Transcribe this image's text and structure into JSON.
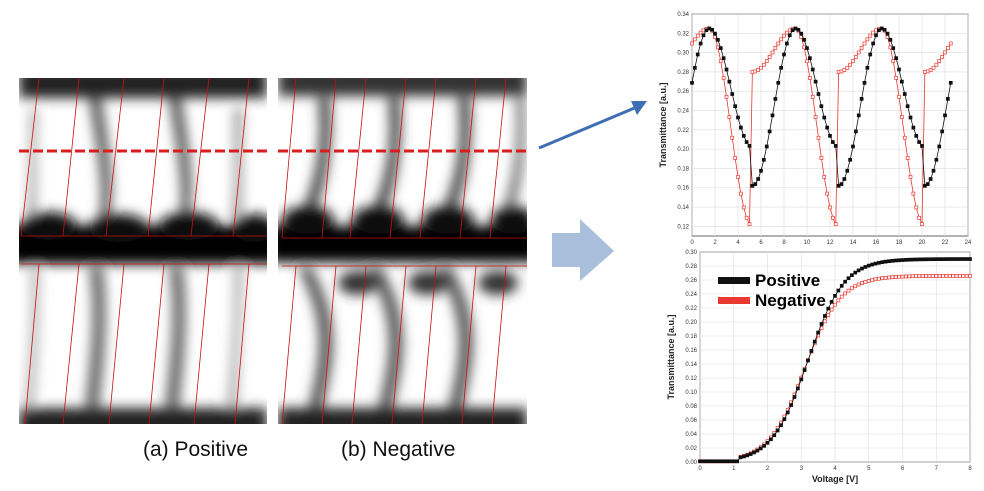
{
  "captions": {
    "a": "(a) Positive",
    "b": "(b) Negative"
  },
  "colors": {
    "positive": "#111111",
    "negative": "#e8382f",
    "dashed_line": "#d81e1e",
    "arrow_blue": "#3f6eb5",
    "big_arrow": "#a9bfdc",
    "electrode_line": "#c81010"
  },
  "icons": [
    "blue-arrow-icon",
    "right-arrow-icon"
  ],
  "chart_data": [
    {
      "type": "line",
      "title": "",
      "xlabel": "",
      "ylabel": "Transmittance [a.u.]",
      "xlim": [
        0,
        24
      ],
      "ylim": [
        0.11,
        0.34
      ],
      "xticks": [
        0,
        2,
        4,
        6,
        8,
        10,
        12,
        14,
        16,
        18,
        20,
        22,
        24
      ],
      "yticks": [
        0.12,
        0.14,
        0.16,
        0.18,
        0.2,
        0.22,
        0.24,
        0.26,
        0.28,
        0.3,
        0.32,
        0.34
      ],
      "grid": true,
      "series": [
        {
          "key": "positive",
          "marker": "filled-square",
          "x_start": 0,
          "x_end": 22.5,
          "period": 7.5,
          "max": 0.325,
          "min": 0.162,
          "mid_min": 0.202,
          "peak_x": [
            1.5,
            9.0,
            16.5
          ],
          "mid_peak_x": [
            5.2,
            12.7,
            20.2
          ]
        },
        {
          "key": "negative",
          "marker": "open-square",
          "x_start": 0,
          "x_end": 22.5,
          "period": 7.5,
          "max": 0.325,
          "min": 0.12,
          "mid_min": 0.28,
          "peak_x": [
            1.5,
            5.2,
            9.0,
            12.7,
            16.5,
            20.2
          ]
        }
      ]
    },
    {
      "type": "line",
      "title": "",
      "xlabel": "Voltage [V]",
      "ylabel": "Transmittance [a.u.]",
      "xlim": [
        0,
        8
      ],
      "ylim": [
        0,
        0.3
      ],
      "xticks": [
        0,
        1,
        2,
        3,
        4,
        5,
        6,
        7,
        8
      ],
      "yticks": [
        0.0,
        0.02,
        0.04,
        0.06,
        0.08,
        0.1,
        0.12,
        0.14,
        0.16,
        0.18,
        0.2,
        0.22,
        0.24,
        0.26,
        0.28,
        0.3
      ],
      "grid": true,
      "legend": "top-left",
      "series": [
        {
          "name": "Positive",
          "key": "positive",
          "marker": "filled-square",
          "x0": 0,
          "x1": 8,
          "threshold": 1.2,
          "v50": 3.2,
          "saturation": 0.29
        },
        {
          "name": "Negative",
          "key": "negative",
          "marker": "open-square",
          "x0": 0,
          "x1": 8,
          "threshold": 1.2,
          "v50": 3.1,
          "saturation": 0.266
        }
      ]
    }
  ]
}
